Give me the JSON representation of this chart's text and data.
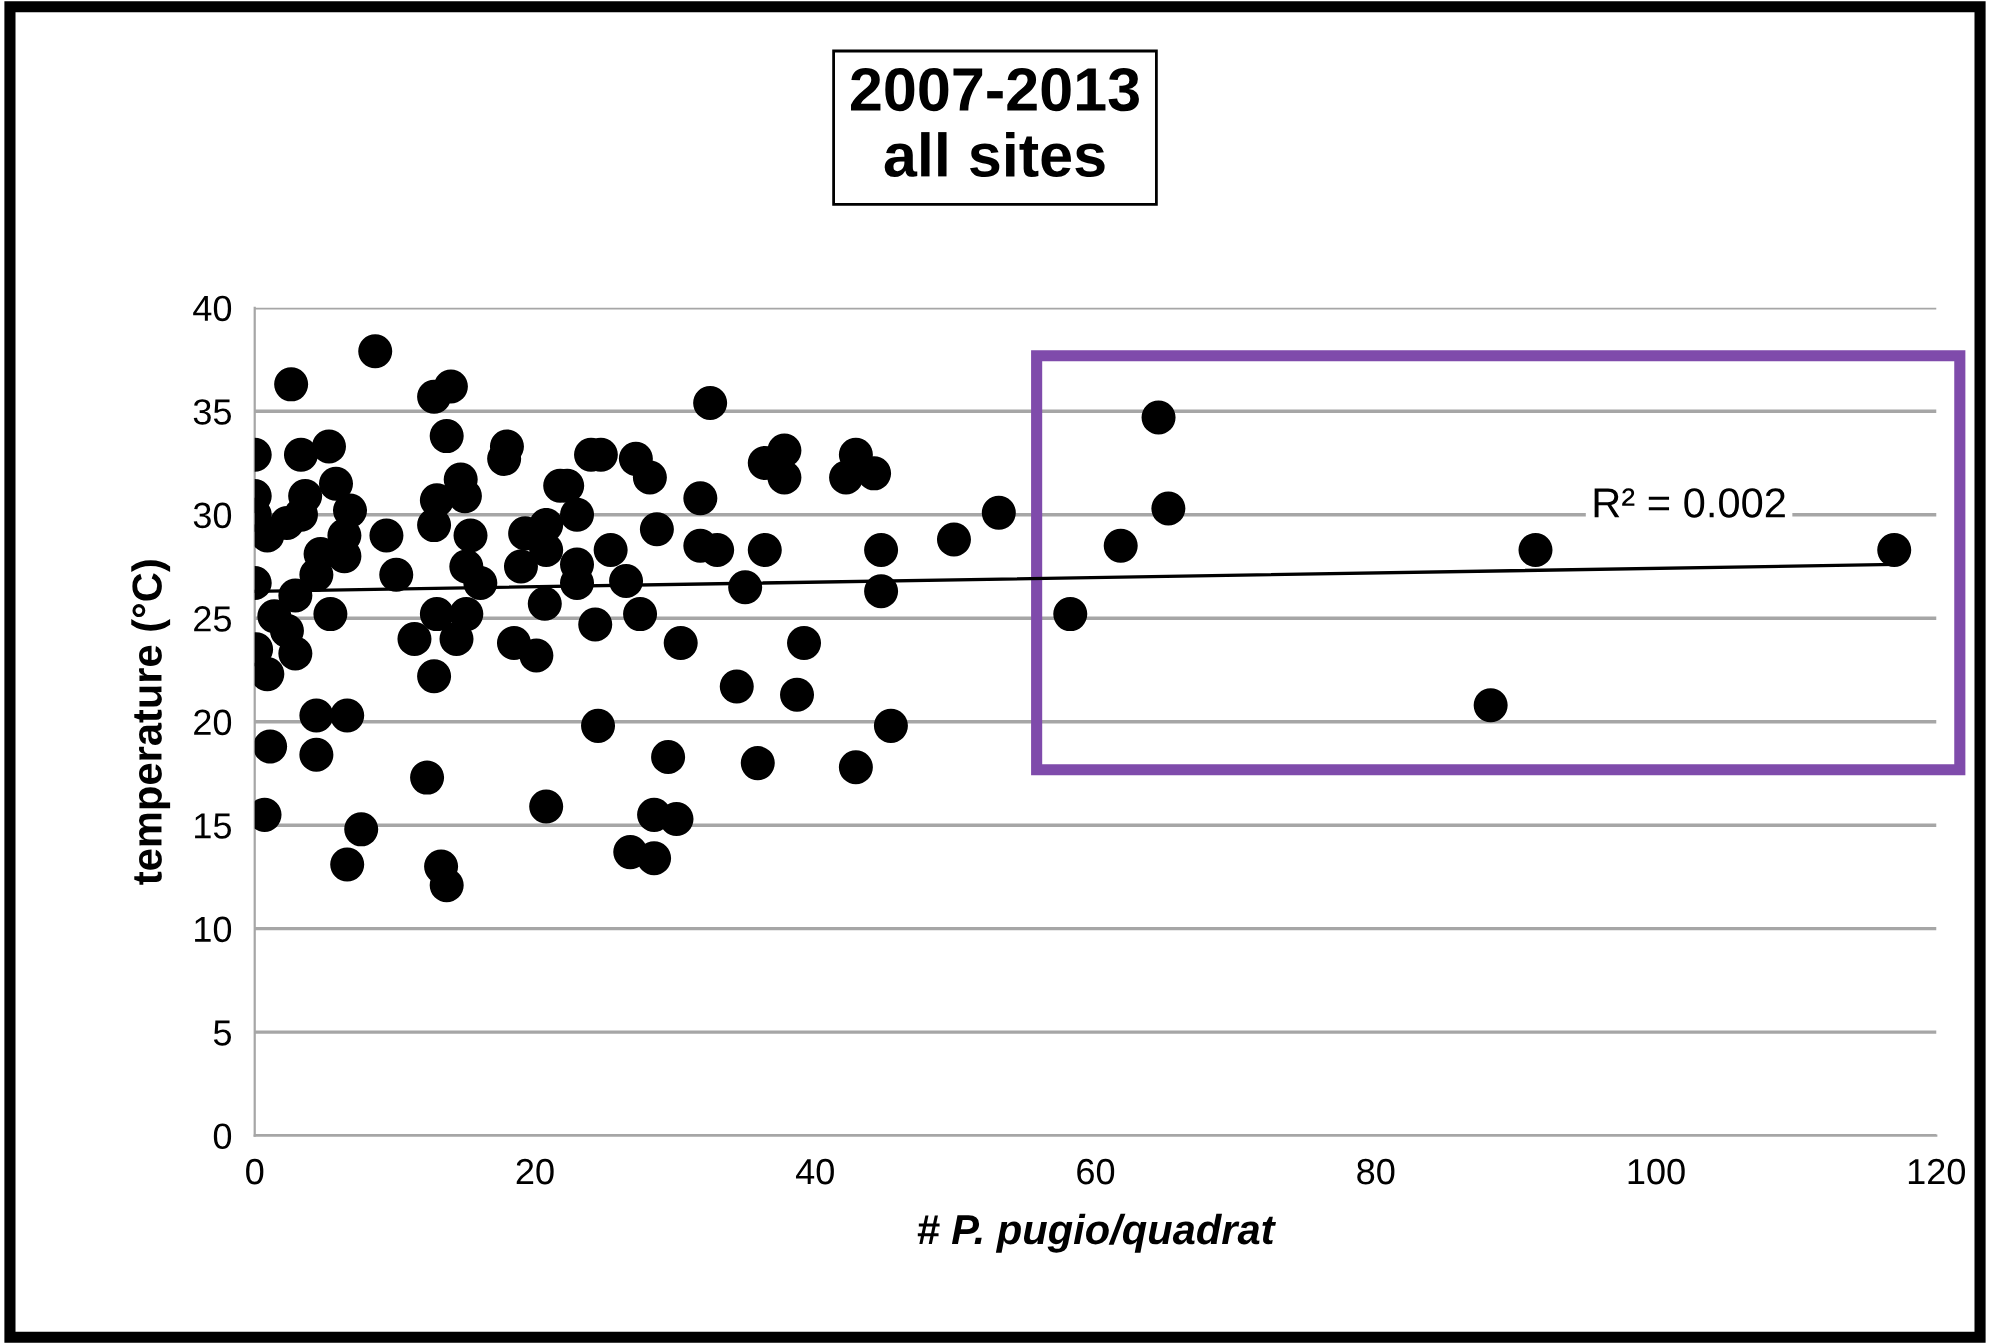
{
  "chart_data": {
    "type": "scatter",
    "title": "2007-2013\nall sites",
    "xlabel": "# P. pugio/quadrat",
    "ylabel": "temperature (°C)",
    "xlim": [
      0,
      120
    ],
    "xticks": [
      0,
      20,
      40,
      60,
      80,
      100,
      120
    ],
    "ylim": [
      0,
      40
    ],
    "yticks": [
      0,
      5,
      10,
      15,
      20,
      25,
      30,
      35,
      40
    ],
    "grid": "y",
    "series": [
      {
        "color": "#000000",
        "marker": "circle",
        "x": [
          0,
          2.6,
          8.6,
          5.3,
          3.3,
          0,
          0,
          0.9,
          2.3,
          3.6,
          5.8,
          6.8,
          3.3,
          6.4,
          4.7,
          6.4,
          4.4,
          0,
          9.4,
          10.1,
          1.4,
          2.9,
          5.4,
          2.3,
          0.1,
          2.9,
          0.9,
          4.4,
          6.6,
          1.1,
          4.4,
          0.7,
          7.6,
          6.6,
          12.3,
          11.4,
          12.8,
          13.0,
          14.4,
          15.1,
          12.8,
          14.0,
          13.7,
          14.7,
          13.0,
          15.0,
          12.8,
          15.4,
          15.1,
          16.1,
          18.0,
          17.8,
          19.3,
          19.0,
          18.5,
          20.1,
          20.7,
          13.3,
          13.7,
          20.8,
          21.8,
          32.5,
          24.0,
          24.7,
          27.2,
          28.2,
          22.3,
          31.8,
          23.0,
          20.8,
          20.8,
          28.7,
          25.4,
          23.0,
          23.0,
          26.5,
          27.5,
          24.3,
          31.8,
          33.0,
          36.4,
          37.8,
          37.8,
          36.4,
          35.0,
          42.9,
          44.2,
          42.2,
          44.7,
          44.7,
          49.9,
          53.1,
          30.4,
          39.2,
          34.4,
          38.7,
          24.5,
          45.4,
          29.5,
          35.9,
          42.9,
          28.5,
          30.1,
          26.8,
          28.5,
          64.5,
          65.2,
          61.8,
          58.2,
          91.4,
          117.0,
          88.2
        ],
        "values": [
          32.9,
          36.3,
          37.9,
          33.3,
          32.9,
          30.9,
          30.0,
          29.0,
          29.6,
          30.9,
          31.5,
          30.2,
          30.0,
          29.0,
          28.1,
          28.0,
          27.1,
          26.7,
          29.0,
          27.1,
          25.1,
          26.1,
          25.2,
          24.4,
          23.5,
          23.3,
          22.3,
          20.3,
          20.3,
          18.8,
          18.4,
          15.5,
          14.8,
          13.1,
          17.3,
          24.0,
          22.2,
          25.2,
          24.0,
          25.2,
          35.7,
          36.2,
          33.8,
          31.7,
          30.7,
          30.9,
          29.5,
          29.0,
          27.5,
          26.7,
          33.3,
          32.7,
          29.1,
          27.5,
          23.8,
          23.2,
          25.7,
          13.0,
          12.1,
          15.9,
          31.4,
          35.4,
          32.9,
          32.9,
          32.7,
          31.8,
          31.4,
          30.8,
          30.0,
          29.5,
          28.3,
          29.3,
          28.3,
          27.6,
          26.7,
          26.8,
          25.2,
          24.7,
          28.5,
          28.3,
          32.5,
          33.1,
          31.8,
          28.3,
          26.5,
          32.9,
          32.0,
          31.8,
          28.3,
          26.3,
          28.8,
          30.1,
          23.8,
          23.8,
          21.7,
          21.3,
          19.8,
          19.8,
          18.3,
          18.0,
          17.8,
          15.5,
          15.3,
          13.7,
          13.4,
          34.7,
          30.3,
          28.5,
          25.2,
          28.3,
          28.3,
          20.8
        ]
      },
      {
        "type": "line",
        "color": "#000000",
        "x": [
          0,
          117
        ],
        "values": [
          26.3,
          27.6
        ]
      }
    ],
    "annotations": [
      "R² = 0.002"
    ]
  }
}
